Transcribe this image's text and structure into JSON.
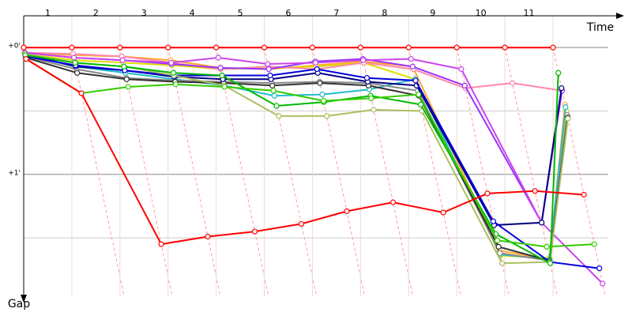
{
  "chart_data": {
    "type": "line",
    "x_label": "Time",
    "y_label": "Gap",
    "x": [
      0,
      1,
      2,
      3,
      4,
      5,
      6,
      7,
      8,
      9,
      10,
      11
    ],
    "xlim": [
      0,
      11
    ],
    "xticks": [
      1,
      2,
      3,
      4,
      5,
      6,
      7,
      8,
      9,
      10,
      11
    ],
    "ylim": [
      -0.25,
      1.96
    ],
    "yticks": [
      {
        "value": 0,
        "label": "+0'"
      },
      {
        "value": 1,
        "label": "+1'"
      }
    ],
    "yminor": [
      0.5,
      1.5
    ],
    "y_inverted": true,
    "grid": true,
    "series": [
      {
        "color": "#ff0000",
        "values": [
          0,
          0,
          0,
          0,
          0,
          0,
          0,
          0,
          0,
          0,
          0,
          0
        ]
      },
      {
        "color": "#ff0000",
        "values": [
          0.09,
          0.36,
          1.55,
          1.49,
          1.45,
          1.39,
          1.29,
          1.22,
          1.3,
          1.15,
          1.13,
          1.16
        ]
      },
      {
        "color": "#33cc00",
        "values": [
          0.09,
          0.36,
          0.31,
          0.29,
          0.31,
          0.34,
          0.42,
          0.4,
          0.37,
          1.52,
          1.57,
          1.55
        ]
      },
      {
        "color": "#00bb00",
        "values": [
          0.06,
          0.12,
          0.15,
          0.2,
          0.22,
          0.46,
          0.43,
          0.38,
          0.45,
          1.47,
          1.7,
          0.2
        ]
      },
      {
        "color": "#aac060",
        "values": [
          0.05,
          0.12,
          0.15,
          0.22,
          0.3,
          0.54,
          0.54,
          0.49,
          0.5,
          1.7,
          1.69,
          0.56
        ]
      },
      {
        "color": "#0000dd",
        "values": [
          0.07,
          0.14,
          0.18,
          0.22,
          0.22,
          0.22,
          0.17,
          0.24,
          0.26,
          1.37,
          1.69,
          1.74
        ]
      },
      {
        "color": "#000080",
        "values": [
          0.05,
          0.15,
          0.18,
          0.23,
          0.25,
          0.25,
          0.2,
          0.27,
          0.3,
          1.4,
          1.38,
          0.32
        ]
      },
      {
        "color": "#cc44ee",
        "values": [
          0.04,
          0.08,
          0.1,
          0.12,
          0.08,
          0.13,
          0.12,
          0.1,
          0.09,
          0.17,
          1.38,
          1.86
        ]
      },
      {
        "color": "#9933ff",
        "values": [
          0.04,
          0.08,
          0.1,
          0.13,
          0.16,
          0.17,
          0.11,
          0.09,
          0.15,
          0.3,
          1.38,
          0.34
        ]
      },
      {
        "color": "#ff88aa",
        "values": [
          0.04,
          0.05,
          0.07,
          0.12,
          0.17,
          0.15,
          0.17,
          0.12,
          0.17,
          0.32,
          0.28,
          0.34
        ]
      },
      {
        "color": "#333333",
        "values": [
          0.08,
          0.2,
          0.25,
          0.27,
          0.28,
          0.3,
          0.28,
          0.3,
          0.38,
          1.57,
          1.68,
          0.55
        ]
      },
      {
        "color": "#888888",
        "values": [
          0.07,
          0.17,
          0.24,
          0.26,
          0.27,
          0.28,
          0.27,
          0.28,
          0.34,
          1.62,
          1.68,
          0.53
        ]
      },
      {
        "color": "#22bbcc",
        "values": [
          0.06,
          0.15,
          0.2,
          0.25,
          0.3,
          0.38,
          0.37,
          0.33,
          0.25,
          1.63,
          1.67,
          0.47
        ]
      },
      {
        "color": "#dddd00",
        "values": [
          0.05,
          0.1,
          0.12,
          0.14,
          0.17,
          0.16,
          0.15,
          0.12,
          0.25,
          1.64,
          1.66,
          0.5
        ]
      },
      {
        "color": "#ffaa33",
        "values": [
          0.04,
          0.06,
          0.07,
          0.1,
          0.16,
          0.17,
          0.14,
          0.11,
          0.15,
          1.6,
          1.67,
          0.45
        ]
      }
    ]
  }
}
